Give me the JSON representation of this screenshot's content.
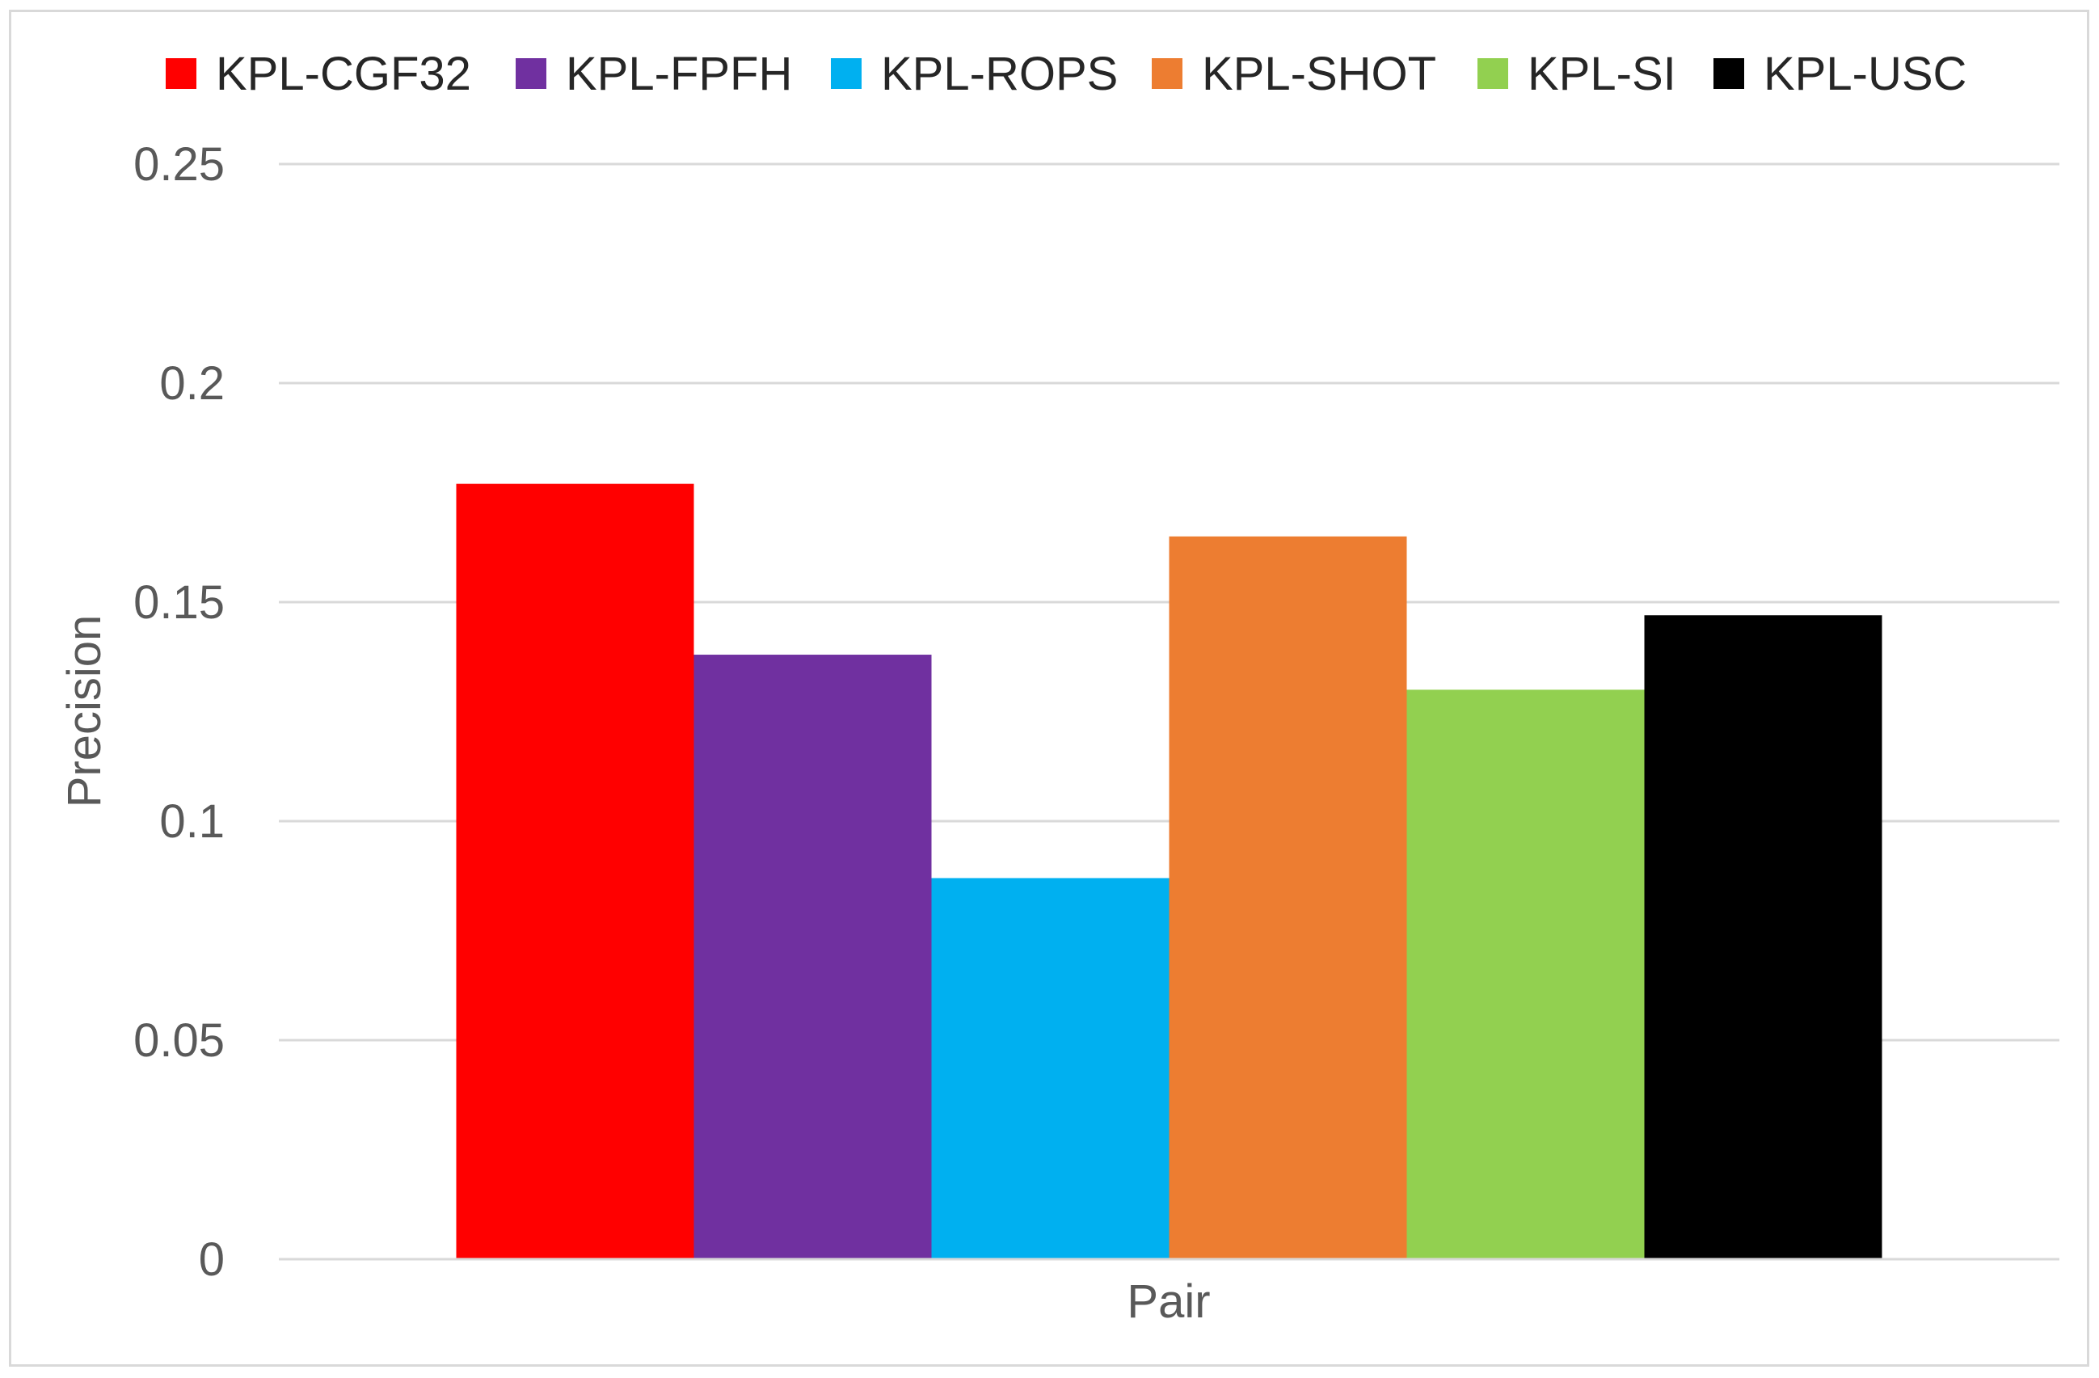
{
  "chart_data": {
    "type": "bar",
    "categories": [
      "Pair"
    ],
    "series": [
      {
        "name": "KPL-CGF32",
        "values": [
          0.177
        ],
        "color": "#ff0000"
      },
      {
        "name": "KPL-FPFH",
        "values": [
          0.138
        ],
        "color": "#7030a0"
      },
      {
        "name": "KPL-ROPS",
        "values": [
          0.087
        ],
        "color": "#00b0f0"
      },
      {
        "name": "KPL-SHOT",
        "values": [
          0.165
        ],
        "color": "#ed7d31"
      },
      {
        "name": "KPL-SI",
        "values": [
          0.13
        ],
        "color": "#92d050"
      },
      {
        "name": "KPL-USC",
        "values": [
          0.147
        ],
        "color": "#000000"
      }
    ],
    "title": "",
    "xlabel": "Pair",
    "ylabel": "Precision",
    "ylim": [
      0,
      0.25
    ],
    "yticks": [
      "0",
      "0.05",
      "0.1",
      "0.15",
      "0.2",
      "0.25"
    ],
    "grid": true,
    "legend_position": "top"
  }
}
